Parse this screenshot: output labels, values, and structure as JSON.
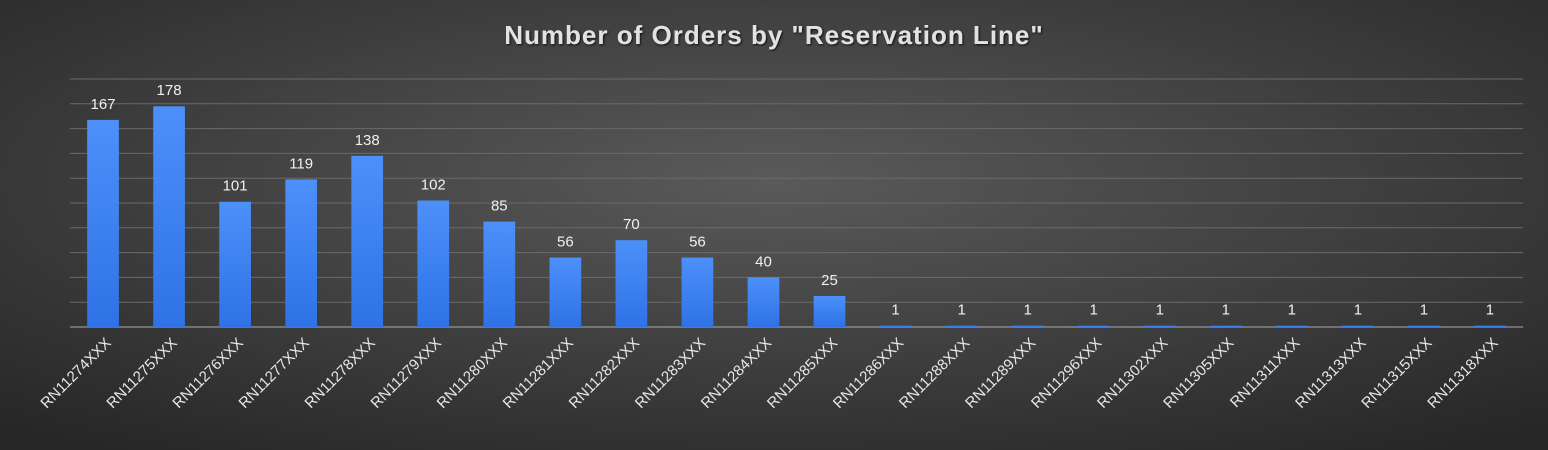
{
  "chart_data": {
    "type": "bar",
    "title": "Number of Orders by \"Reservation Line\"",
    "categories": [
      "RN11274XXX",
      "RN11275XXX",
      "RN11276XXX",
      "RN11277XXX",
      "RN11278XXX",
      "RN11279XXX",
      "RN11280XXX",
      "RN11281XXX",
      "RN11282XXX",
      "RN11283XXX",
      "RN11284XXX",
      "RN11285XXX",
      "RN11286XXX",
      "RN11288XXX",
      "RN11289XXX",
      "RN11296XXX",
      "RN11302XXX",
      "RN11305XXX",
      "RN11311XXX",
      "RN11313XXX",
      "RN11315XXX",
      "RN11318XXX"
    ],
    "values": [
      167,
      178,
      101,
      119,
      138,
      102,
      85,
      56,
      70,
      56,
      40,
      25,
      1,
      1,
      1,
      1,
      1,
      1,
      1,
      1,
      1,
      1
    ],
    "color": "#3f86f5",
    "ylim": [
      0,
      200
    ],
    "yticks": [
      0,
      20,
      40,
      60,
      80,
      100,
      120,
      140,
      160,
      180,
      200
    ],
    "grid": true
  }
}
